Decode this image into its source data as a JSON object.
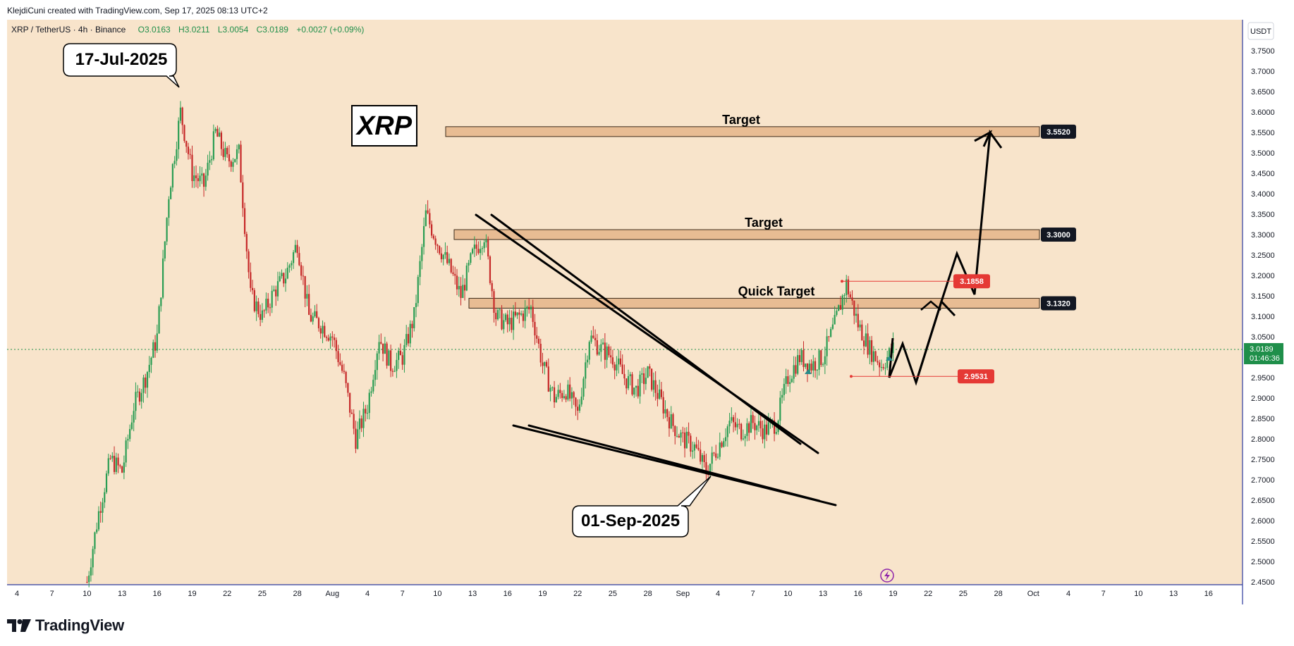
{
  "header": {
    "credit": "KlejdiCuni created with TradingView.com, Sep 17, 2025 08:13 UTC+2"
  },
  "legend": {
    "symbol": "XRP / TetherUS · 4h · Binance",
    "open": "O3.0163",
    "high": "H3.0211",
    "low": "L3.0054",
    "close": "C3.0189",
    "change": "+0.0027 (+0.09%)"
  },
  "colors": {
    "background": "#f8e4cb",
    "up": "#2a9d53",
    "down": "#c62828",
    "zone": "#e8bc93",
    "label_dark": "#131722",
    "label_red": "#e53935",
    "price_green": "#1f8f4a",
    "axis_line": "#2d3a9c"
  },
  "chart_data": {
    "type": "candlestick",
    "symbol": "XRP / TetherUS",
    "interval": "4h",
    "exchange": "Binance",
    "currency": "USDT",
    "ylim": [
      2.43,
      3.8
    ],
    "y_ticks": [
      "3.7500",
      "3.7000",
      "3.6500",
      "3.6000",
      "3.5500",
      "3.5000",
      "3.4500",
      "3.4000",
      "3.3500",
      "3.3000",
      "3.2500",
      "3.2000",
      "3.1500",
      "3.1000",
      "3.0500",
      "3.0000",
      "2.9500",
      "2.9000",
      "2.8500",
      "2.8000",
      "2.7500",
      "2.7000",
      "2.6500",
      "2.6000",
      "2.5500",
      "2.5000",
      "2.4500"
    ],
    "x_ticks": [
      "4",
      "7",
      "10",
      "13",
      "16",
      "19",
      "22",
      "25",
      "28",
      "Aug",
      "4",
      "7",
      "10",
      "13",
      "16",
      "19",
      "22",
      "25",
      "28",
      "Sep",
      "4",
      "7",
      "10",
      "13",
      "16",
      "19",
      "22",
      "25",
      "28",
      "Oct",
      "4",
      "7",
      "10",
      "13",
      "16"
    ],
    "price_path": [
      [
        "2025-07-10",
        2.45
      ],
      [
        "2025-07-11",
        2.62
      ],
      [
        "2025-07-12",
        2.75
      ],
      [
        "2025-07-13",
        2.72
      ],
      [
        "2025-07-14",
        2.88
      ],
      [
        "2025-07-15",
        2.95
      ],
      [
        "2025-07-16",
        3.05
      ],
      [
        "2025-07-17",
        3.4
      ],
      [
        "2025-07-18",
        3.6
      ],
      [
        "2025-07-19",
        3.45
      ],
      [
        "2025-07-20",
        3.42
      ],
      [
        "2025-07-21",
        3.55
      ],
      [
        "2025-07-22",
        3.48
      ],
      [
        "2025-07-23",
        3.5
      ],
      [
        "2025-07-24",
        3.15
      ],
      [
        "2025-07-25",
        3.1
      ],
      [
        "2025-07-26",
        3.16
      ],
      [
        "2025-07-27",
        3.2
      ],
      [
        "2025-07-28",
        3.28
      ],
      [
        "2025-07-29",
        3.1
      ],
      [
        "2025-07-30",
        3.08
      ],
      [
        "2025-07-31",
        3.05
      ],
      [
        "2025-08-01",
        2.95
      ],
      [
        "2025-08-02",
        2.8
      ],
      [
        "2025-08-03",
        2.88
      ],
      [
        "2025-08-04",
        3.05
      ],
      [
        "2025-08-05",
        2.98
      ],
      [
        "2025-08-06",
        3.0
      ],
      [
        "2025-08-07",
        3.1
      ],
      [
        "2025-08-08",
        3.35
      ],
      [
        "2025-08-09",
        3.28
      ],
      [
        "2025-08-10",
        3.22
      ],
      [
        "2025-08-11",
        3.15
      ],
      [
        "2025-08-12",
        3.25
      ],
      [
        "2025-08-13",
        3.3
      ],
      [
        "2025-08-14",
        3.1
      ],
      [
        "2025-08-15",
        3.08
      ],
      [
        "2025-08-16",
        3.1
      ],
      [
        "2025-08-17",
        3.12
      ],
      [
        "2025-08-18",
        2.98
      ],
      [
        "2025-08-19",
        2.9
      ],
      [
        "2025-08-20",
        2.92
      ],
      [
        "2025-08-21",
        2.86
      ],
      [
        "2025-08-22",
        3.05
      ],
      [
        "2025-08-23",
        3.02
      ],
      [
        "2025-08-24",
        3.0
      ],
      [
        "2025-08-25",
        2.95
      ],
      [
        "2025-08-26",
        2.92
      ],
      [
        "2025-08-27",
        2.96
      ],
      [
        "2025-08-28",
        2.9
      ],
      [
        "2025-08-29",
        2.84
      ],
      [
        "2025-08-30",
        2.8
      ],
      [
        "2025-08-31",
        2.78
      ],
      [
        "2025-09-01",
        2.72
      ],
      [
        "2025-09-02",
        2.78
      ],
      [
        "2025-09-03",
        2.84
      ],
      [
        "2025-09-04",
        2.82
      ],
      [
        "2025-09-05",
        2.84
      ],
      [
        "2025-09-06",
        2.82
      ],
      [
        "2025-09-07",
        2.84
      ],
      [
        "2025-09-08",
        2.95
      ],
      [
        "2025-09-09",
        3.0
      ],
      [
        "2025-09-10",
        2.98
      ],
      [
        "2025-09-11",
        3.0
      ],
      [
        "2025-09-12",
        3.08
      ],
      [
        "2025-09-13",
        3.18
      ],
      [
        "2025-09-14",
        3.08
      ],
      [
        "2025-09-15",
        3.02
      ],
      [
        "2025-09-16",
        2.98
      ],
      [
        "2025-09-17",
        3.02
      ]
    ],
    "current_price": "3.0189",
    "countdown": "01:46:36"
  },
  "annotations": {
    "title_box": "XRP",
    "callout_top": "17-Jul-2025",
    "callout_bottom": "01-Sep-2025",
    "zones": [
      {
        "label": "Target",
        "price": "3.5520"
      },
      {
        "label": "Target",
        "price": "3.3000"
      },
      {
        "label": "Quick Target",
        "price": "3.1320"
      }
    ],
    "markers": [
      {
        "price": "3.1858"
      },
      {
        "price": "2.9531"
      }
    ]
  },
  "axis": {
    "currency_button": "USDT"
  },
  "footer": {
    "brand": "TradingView"
  }
}
